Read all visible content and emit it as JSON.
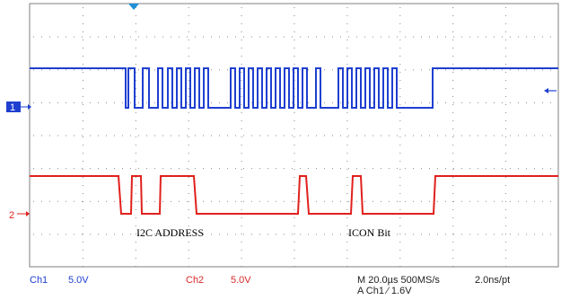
{
  "scope": {
    "colors": {
      "ch1": "#1f3fd0",
      "ch2": "#e0201c",
      "grid": "#7f7f7f",
      "marker_bg": "#1f3fd0",
      "status_blue": "#1f3fd0",
      "status_red": "#d82a2a",
      "status_black": "#222222"
    },
    "ch1_marker": "1",
    "ch2_marker": "2",
    "trigger_level_icon": "left-arrow-icon",
    "trigger_position_icon": "down-triangle-icon"
  },
  "annotations": {
    "i2c_address": "I2C ADDRESS",
    "icon_bit": "ICON Bit"
  },
  "status": {
    "ch1_label": "Ch1",
    "ch1_scale": "5.0V",
    "ch2_label": "Ch2",
    "ch2_scale": "5.0V",
    "timebase": "M 20.0µs 500MS/s",
    "resolution": "2.0ns/pt",
    "trigger": "A  Ch1  ⁄  1.6V"
  }
}
